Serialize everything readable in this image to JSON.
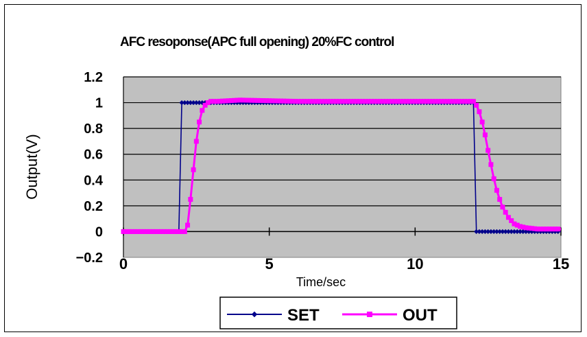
{
  "chart_data": {
    "type": "line",
    "title": "AFC resoponse(APC full opening) 20%FC control",
    "xlabel": "Time/sec",
    "ylabel": "Output(V)",
    "xlim": [
      0,
      15
    ],
    "ylim": [
      -0.2,
      1.2
    ],
    "x_ticks": [
      "0",
      "5",
      "10",
      "15"
    ],
    "y_ticks": [
      "1.2",
      "1",
      "0.8",
      "0.6",
      "0.4",
      "0.2",
      "0",
      "−0.2"
    ],
    "grid": true,
    "legend_position": "bottom",
    "series": [
      {
        "name": "SET",
        "color": "#00008b",
        "marker": "diamond",
        "points": [
          [
            0,
            0
          ],
          [
            1.9,
            0
          ],
          [
            2.0,
            1.0
          ],
          [
            12.0,
            1.0
          ],
          [
            12.1,
            0
          ],
          [
            15,
            0
          ]
        ]
      },
      {
        "name": "OUT",
        "color": "#ff00ff",
        "marker": "square",
        "points": [
          [
            0,
            0
          ],
          [
            2.1,
            0
          ],
          [
            2.2,
            0.05
          ],
          [
            2.3,
            0.25
          ],
          [
            2.4,
            0.48
          ],
          [
            2.5,
            0.7
          ],
          [
            2.6,
            0.85
          ],
          [
            2.7,
            0.94
          ],
          [
            2.8,
            0.98
          ],
          [
            2.9,
            1.0
          ],
          [
            3.0,
            1.01
          ],
          [
            3.2,
            1.01
          ],
          [
            4.0,
            1.02
          ],
          [
            6.0,
            1.01
          ],
          [
            8.0,
            1.01
          ],
          [
            10.0,
            1.01
          ],
          [
            12.0,
            1.01
          ],
          [
            12.1,
            0.98
          ],
          [
            12.2,
            0.93
          ],
          [
            12.3,
            0.85
          ],
          [
            12.4,
            0.75
          ],
          [
            12.5,
            0.63
          ],
          [
            12.6,
            0.52
          ],
          [
            12.7,
            0.41
          ],
          [
            12.8,
            0.32
          ],
          [
            12.9,
            0.25
          ],
          [
            13.0,
            0.19
          ],
          [
            13.2,
            0.11
          ],
          [
            13.4,
            0.06
          ],
          [
            13.6,
            0.04
          ],
          [
            13.8,
            0.03
          ],
          [
            14.2,
            0.02
          ],
          [
            15,
            0.02
          ]
        ]
      }
    ]
  }
}
